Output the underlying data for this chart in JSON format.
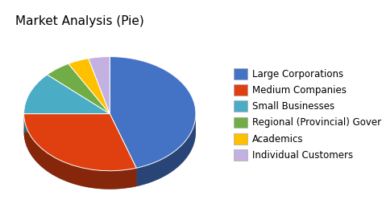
{
  "title": "Market Analysis (Pie)",
  "labels": [
    "Large Corporations",
    "Medium Companies",
    "Small Businesses",
    "Regional (Provincial) Governme",
    "Academics",
    "Individual Customers"
  ],
  "values": [
    45,
    30,
    12,
    5,
    4,
    4
  ],
  "colors": [
    "#4472C4",
    "#E04010",
    "#4BACC6",
    "#70AD47",
    "#FFC000",
    "#C3B1E1"
  ],
  "title_fontsize": 11,
  "legend_fontsize": 8.5,
  "background_color": "#FFFFFF"
}
